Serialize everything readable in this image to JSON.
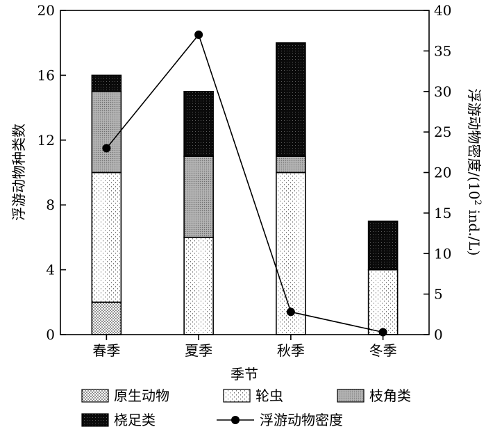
{
  "chart_data": {
    "type": "bar",
    "stacked": true,
    "categories": [
      "春季",
      "夏季",
      "秋季",
      "冬季"
    ],
    "xlabel": "季节",
    "ylabel": "浮游动物种类数",
    "ylabel2": "浮游动物密度/(10² ind./L)",
    "ylim": [
      0,
      20
    ],
    "y2lim": [
      0,
      40
    ],
    "yticks": [
      0,
      4,
      8,
      12,
      16,
      20
    ],
    "y2ticks": [
      0,
      5,
      10,
      15,
      20,
      25,
      30,
      35,
      40
    ],
    "grid": false,
    "legend_position": "bottom",
    "series": [
      {
        "name": "原生动物",
        "values": [
          2,
          0,
          0,
          0
        ],
        "pattern": "protozoa"
      },
      {
        "name": "轮虫",
        "values": [
          8,
          6,
          10,
          4
        ],
        "pattern": "rotifer"
      },
      {
        "name": "枝角类",
        "values": [
          5,
          5,
          1,
          0
        ],
        "pattern": "cladocera"
      },
      {
        "name": "桡足类",
        "values": [
          1,
          4,
          7,
          3
        ],
        "pattern": "copepod"
      }
    ],
    "line_series": {
      "name": "浮游动物密度",
      "axis": "right",
      "values": [
        23,
        37,
        2.8,
        0.3
      ]
    }
  }
}
